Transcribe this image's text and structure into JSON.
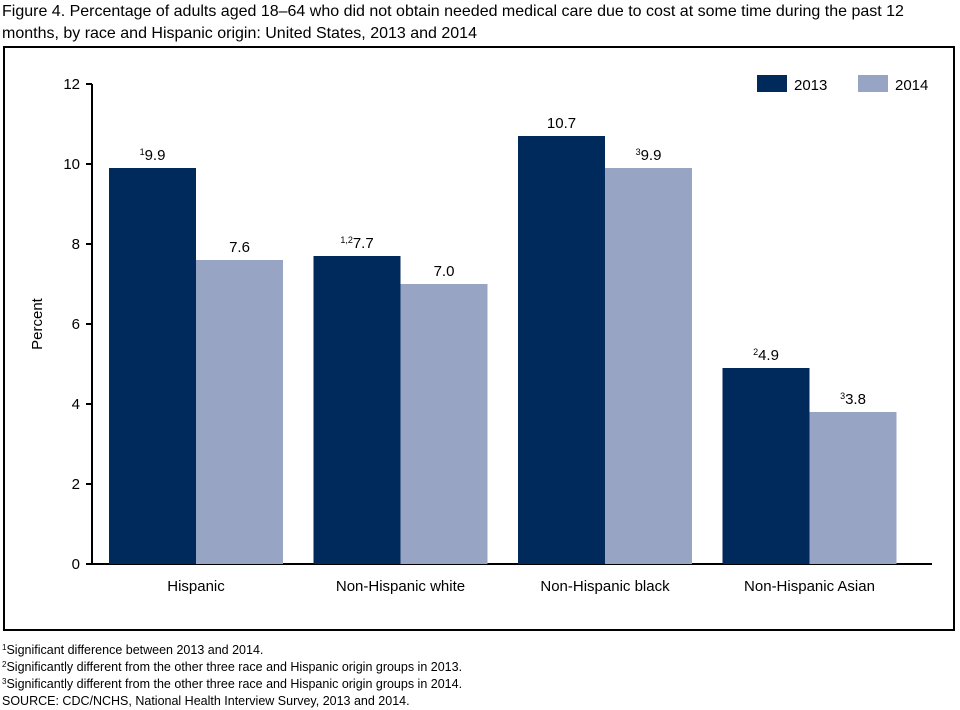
{
  "title": "Figure 4. Percentage of adults aged 18–64 who did not obtain needed medical care due to cost at some time during the past 12 months, by race and Hispanic origin: United States, 2013 and 2014",
  "colors": {
    "2013": "#002a5c",
    "2014": "#97a4c3"
  },
  "chart_data": {
    "type": "bar",
    "title": "Figure 4. Percentage of adults aged 18–64 who did not obtain needed medical care due to cost at some time during the past 12 months, by race and Hispanic origin: United States, 2013 and 2014",
    "categories": [
      "Hispanic",
      "Non-Hispanic white",
      "Non-Hispanic black",
      "Non-Hispanic Asian"
    ],
    "series": [
      {
        "name": "2013",
        "values": [
          9.9,
          7.7,
          10.7,
          4.9
        ],
        "labels": [
          "9.9",
          "7.7",
          "10.7",
          "4.9"
        ],
        "superscripts": [
          "1",
          "1,2",
          "",
          "2"
        ]
      },
      {
        "name": "2014",
        "values": [
          7.6,
          7.0,
          9.9,
          3.8
        ],
        "labels": [
          "7.6",
          "7.0",
          "9.9",
          "3.8"
        ],
        "superscripts": [
          "",
          "",
          "3",
          "3"
        ]
      }
    ],
    "xlabel": "",
    "ylabel": "Percent",
    "ylim": [
      0,
      12
    ],
    "yticks": [
      "0",
      "2",
      "4",
      "6",
      "8",
      "10",
      "12"
    ],
    "grid": false,
    "legend": "top-right"
  },
  "notes": [
    {
      "sup": "1",
      "text": "Significant difference between 2013 and 2014."
    },
    {
      "sup": "2",
      "text": "Significantly different from the other three race and Hispanic origin groups in 2013."
    },
    {
      "sup": "3",
      "text": "Significantly different from the other three race and Hispanic origin groups in 2014."
    }
  ],
  "source": "SOURCE: CDC/NCHS, National Health Interview Survey, 2013 and 2014."
}
